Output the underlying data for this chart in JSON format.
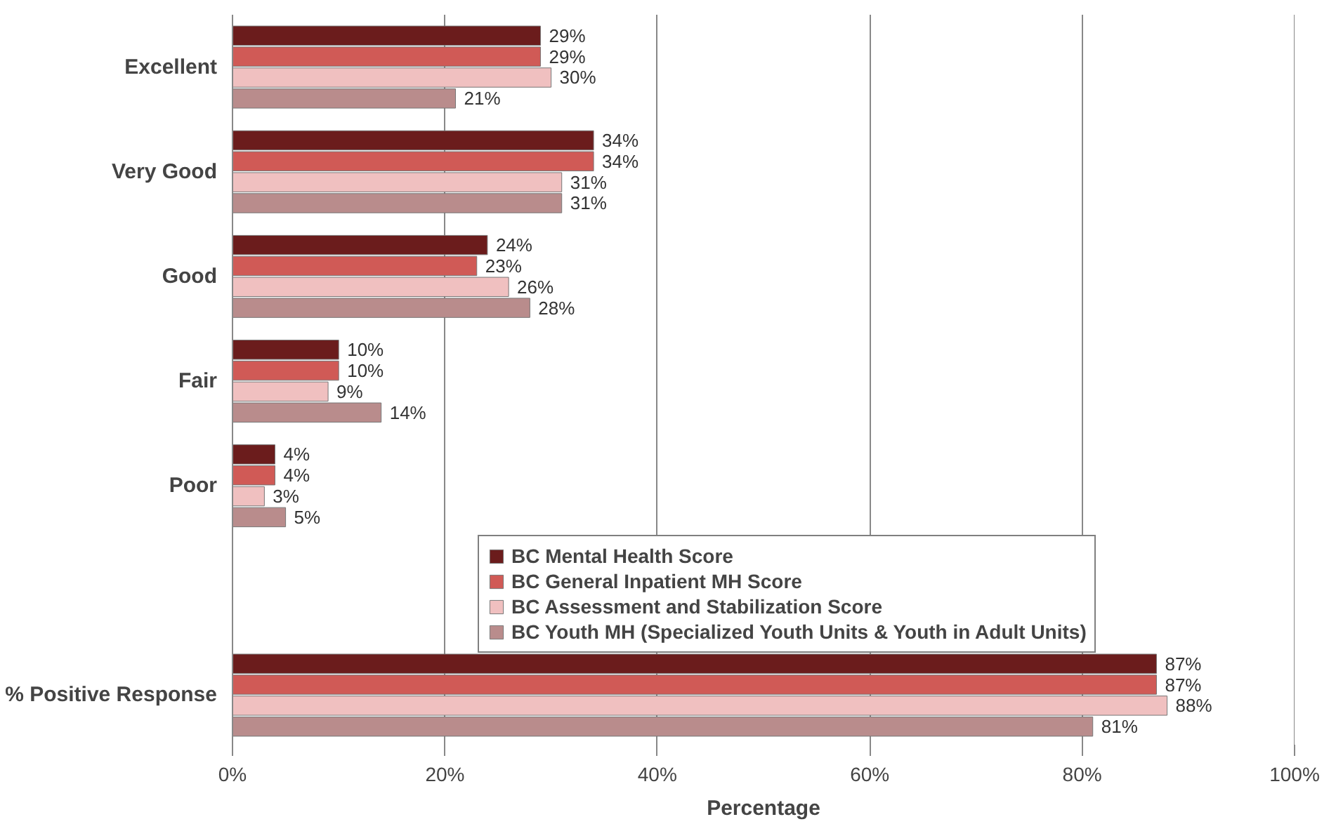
{
  "chart_data": {
    "type": "bar",
    "orientation": "horizontal",
    "xlabel": "Percentage",
    "categories": [
      "Excellent",
      "Very Good",
      "Good",
      "Fair",
      "Poor",
      null,
      "% Positive Response"
    ],
    "series": [
      {
        "name": "BC Mental Health Score",
        "color": "#6b1c1c",
        "values": [
          29,
          34,
          24,
          10,
          4,
          null,
          87
        ],
        "value_labels": [
          "29%",
          "34%",
          "24%",
          "10%",
          "4%",
          null,
          "87%"
        ]
      },
      {
        "name": "BC General Inpatient MH Score",
        "color": "#d05a56",
        "values": [
          29,
          34,
          23,
          10,
          4,
          null,
          87
        ],
        "value_labels": [
          "29%",
          "34%",
          "23%",
          "10%",
          "4%",
          null,
          "87%"
        ]
      },
      {
        "name": "BC Assessment and Stabilization Score",
        "color": "#f0c0c0",
        "values": [
          30,
          31,
          26,
          9,
          3,
          null,
          88
        ],
        "value_labels": [
          "30%",
          "31%",
          "26%",
          "9%",
          "3%",
          null,
          "88%"
        ]
      },
      {
        "name": "BC Youth MH (Specialized Youth Units & Youth in Adult Units)",
        "color": "#b98c8c",
        "values": [
          21,
          31,
          28,
          14,
          5,
          null,
          81
        ],
        "value_labels": [
          "21%",
          "31%",
          "28%",
          "14%",
          "5%",
          null,
          "81%"
        ]
      }
    ],
    "xlim": [
      0,
      100
    ],
    "xticks": [
      {
        "value": 0,
        "label": "0%"
      },
      {
        "value": 20,
        "label": "20%"
      },
      {
        "value": 40,
        "label": "40%"
      },
      {
        "value": 60,
        "label": "60%"
      },
      {
        "value": 80,
        "label": "80%"
      },
      {
        "value": 100,
        "label": "100%"
      }
    ],
    "grid": "x",
    "legend": "bottom right"
  }
}
